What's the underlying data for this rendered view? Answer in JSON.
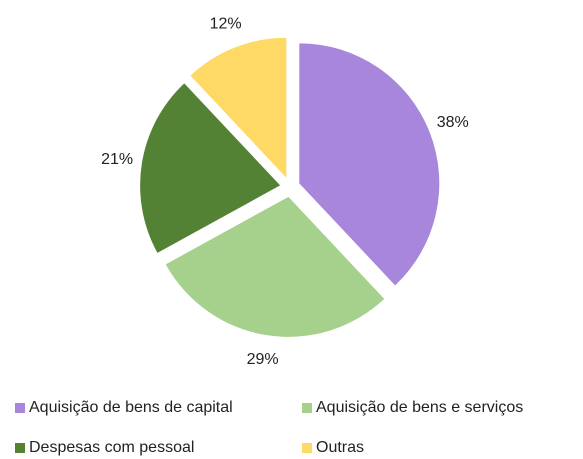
{
  "chart_data": {
    "type": "pie",
    "categories": [
      "Aquisição de bens de capital",
      "Aquisição de bens e serviços",
      "Despesas com pessoal",
      "Outras"
    ],
    "values": [
      38,
      29,
      21,
      12
    ],
    "value_labels": [
      "38%",
      "29%",
      "21%",
      "12%"
    ],
    "colors": [
      "#a886dc",
      "#a6d18c",
      "#548235",
      "#ffd966"
    ],
    "legend": "bottom"
  }
}
